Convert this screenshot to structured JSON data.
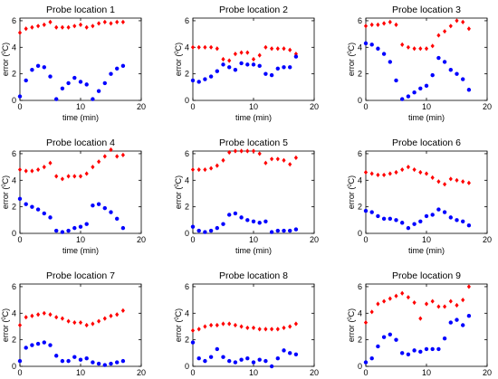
{
  "colors": {
    "series_red": "#ff0000",
    "series_blue": "#0000ff"
  },
  "chart_data": [
    {
      "type": "scatter",
      "title": "Probe location 1",
      "xlabel": "time (min)",
      "ylabel": "error (",
      "ylabel_unit": "0",
      "ylabel_unit_tail": "C)",
      "xlim": [
        0,
        20
      ],
      "ylim": [
        0,
        6.2
      ],
      "xticks": [
        0,
        10,
        20
      ],
      "yticks": [
        0,
        2,
        4,
        6
      ],
      "series": [
        {
          "color": "red",
          "marker": "diamond",
          "x": [
            0,
            1,
            2,
            3,
            4,
            5,
            6,
            7,
            8,
            9,
            10,
            11,
            12,
            13,
            14,
            15,
            16,
            17
          ],
          "y": [
            5.1,
            5.4,
            5.5,
            5.6,
            5.7,
            5.9,
            5.5,
            5.5,
            5.5,
            5.6,
            5.7,
            5.5,
            5.6,
            5.8,
            5.9,
            5.8,
            5.9,
            5.9
          ]
        },
        {
          "color": "blue",
          "marker": "circle",
          "x": [
            0,
            1,
            2,
            3,
            4,
            5,
            6,
            7,
            8,
            9,
            10,
            11,
            12,
            13,
            14,
            15,
            16,
            17
          ],
          "y": [
            0.3,
            1.5,
            2.3,
            2.6,
            2.5,
            1.8,
            0.1,
            0.9,
            1.3,
            1.7,
            1.4,
            1.2,
            0.1,
            0.7,
            1.3,
            2.0,
            2.4,
            2.6
          ]
        }
      ]
    },
    {
      "type": "scatter",
      "title": "Probe location 2",
      "xlabel": "time (min)",
      "ylabel": "error (",
      "ylabel_unit": "0",
      "ylabel_unit_tail": "C)",
      "xlim": [
        0,
        20
      ],
      "ylim": [
        0,
        6.2
      ],
      "xticks": [
        0,
        10,
        20
      ],
      "yticks": [
        0,
        2,
        4,
        6
      ],
      "series": [
        {
          "color": "red",
          "marker": "diamond",
          "x": [
            0,
            1,
            2,
            3,
            4,
            5,
            6,
            7,
            8,
            9,
            10,
            11,
            12,
            13,
            14,
            15,
            16,
            17
          ],
          "y": [
            4.0,
            4.0,
            4.0,
            4.0,
            3.9,
            3.1,
            3.0,
            3.5,
            3.6,
            3.6,
            3.1,
            3.4,
            4.0,
            3.9,
            3.9,
            3.9,
            3.8,
            3.5
          ]
        },
        {
          "color": "blue",
          "marker": "circle",
          "x": [
            0,
            1,
            2,
            3,
            4,
            5,
            6,
            7,
            8,
            9,
            10,
            11,
            12,
            13,
            14,
            15,
            16,
            17
          ],
          "y": [
            1.5,
            1.4,
            1.6,
            1.8,
            2.2,
            2.7,
            2.5,
            2.3,
            2.8,
            2.7,
            2.7,
            2.6,
            2.0,
            1.9,
            2.4,
            2.5,
            2.5,
            3.3
          ]
        }
      ]
    },
    {
      "type": "scatter",
      "title": "Probe location 3",
      "xlabel": "time (min)",
      "ylabel": "error (",
      "ylabel_unit": "0",
      "ylabel_unit_tail": "C)",
      "xlim": [
        0,
        20
      ],
      "ylim": [
        0,
        6.2
      ],
      "xticks": [
        0,
        10,
        20
      ],
      "yticks": [
        0,
        2,
        4,
        6
      ],
      "series": [
        {
          "color": "red",
          "marker": "diamond",
          "x": [
            0,
            1,
            2,
            3,
            4,
            5,
            6,
            7,
            8,
            9,
            10,
            11,
            12,
            13,
            14,
            15,
            16,
            17
          ],
          "y": [
            5.6,
            5.7,
            5.7,
            5.8,
            5.9,
            5.7,
            4.2,
            4.0,
            3.9,
            3.9,
            3.9,
            4.1,
            4.9,
            5.2,
            5.6,
            6.0,
            5.9,
            5.4
          ]
        },
        {
          "color": "blue",
          "marker": "circle",
          "x": [
            0,
            1,
            2,
            3,
            4,
            5,
            6,
            7,
            8,
            9,
            10,
            11,
            12,
            13,
            14,
            15,
            16,
            17
          ],
          "y": [
            4.3,
            4.2,
            3.9,
            3.5,
            2.9,
            1.5,
            0.1,
            0.3,
            0.6,
            0.9,
            1.1,
            1.9,
            3.2,
            2.9,
            2.3,
            2.0,
            1.6,
            0.8
          ]
        }
      ]
    },
    {
      "type": "scatter",
      "title": "Probe location 4",
      "xlabel": "time (min)",
      "ylabel": "error (",
      "ylabel_unit": "0",
      "ylabel_unit_tail": "C)",
      "xlim": [
        0,
        20
      ],
      "ylim": [
        0,
        6.2
      ],
      "xticks": [
        0,
        10,
        20
      ],
      "yticks": [
        0,
        2,
        4,
        6
      ],
      "series": [
        {
          "color": "red",
          "marker": "diamond",
          "x": [
            0,
            1,
            2,
            3,
            4,
            5,
            6,
            7,
            8,
            9,
            10,
            11,
            12,
            13,
            14,
            15,
            16,
            17
          ],
          "y": [
            4.8,
            4.7,
            4.7,
            4.8,
            5.0,
            5.3,
            4.3,
            4.1,
            4.3,
            4.3,
            4.3,
            4.5,
            5.0,
            5.4,
            5.8,
            6.3,
            5.8,
            5.9
          ]
        },
        {
          "color": "blue",
          "marker": "circle",
          "x": [
            0,
            1,
            2,
            3,
            4,
            5,
            6,
            7,
            8,
            9,
            10,
            11,
            12,
            13,
            14,
            15,
            16,
            17
          ],
          "y": [
            2.6,
            2.2,
            2.0,
            1.8,
            1.5,
            1.2,
            0.2,
            0.1,
            0.2,
            0.4,
            0.5,
            0.7,
            2.1,
            2.2,
            1.9,
            1.6,
            1.1,
            0.4
          ]
        }
      ]
    },
    {
      "type": "scatter",
      "title": "Probe location 5",
      "xlabel": "time (min)",
      "ylabel": "error (",
      "ylabel_unit": "0",
      "ylabel_unit_tail": "C)",
      "xlim": [
        0,
        20
      ],
      "ylim": [
        0,
        6.2
      ],
      "xticks": [
        0,
        10,
        20
      ],
      "yticks": [
        0,
        2,
        4,
        6
      ],
      "series": [
        {
          "color": "red",
          "marker": "diamond",
          "x": [
            0,
            1,
            2,
            3,
            4,
            5,
            6,
            7,
            8,
            9,
            10,
            11,
            12,
            13,
            14,
            15,
            16,
            17
          ],
          "y": [
            4.8,
            4.8,
            4.8,
            4.9,
            5.1,
            5.5,
            6.1,
            6.2,
            6.2,
            6.2,
            6.2,
            6.0,
            5.3,
            5.6,
            5.6,
            5.5,
            5.2,
            5.7
          ]
        },
        {
          "color": "blue",
          "marker": "circle",
          "x": [
            0,
            1,
            2,
            3,
            4,
            5,
            6,
            7,
            8,
            9,
            10,
            11,
            12,
            13,
            14,
            15,
            16,
            17
          ],
          "y": [
            0.5,
            0.2,
            0.1,
            0.2,
            0.4,
            0.7,
            1.4,
            1.5,
            1.2,
            1.0,
            0.9,
            0.8,
            0.9,
            0.1,
            0.2,
            0.2,
            0.2,
            0.3
          ]
        }
      ]
    },
    {
      "type": "scatter",
      "title": "Probe location 6",
      "xlabel": "time (min)",
      "ylabel": "error (",
      "ylabel_unit": "0",
      "ylabel_unit_tail": "C)",
      "xlim": [
        0,
        20
      ],
      "ylim": [
        0,
        6.2
      ],
      "xticks": [
        0,
        10,
        20
      ],
      "yticks": [
        0,
        2,
        4,
        6
      ],
      "series": [
        {
          "color": "red",
          "marker": "diamond",
          "x": [
            0,
            1,
            2,
            3,
            4,
            5,
            6,
            7,
            8,
            9,
            10,
            11,
            12,
            13,
            14,
            15,
            16,
            17
          ],
          "y": [
            4.6,
            4.5,
            4.4,
            4.4,
            4.5,
            4.6,
            4.8,
            5.0,
            4.8,
            4.6,
            4.5,
            4.2,
            3.9,
            3.7,
            4.1,
            4.0,
            3.9,
            3.8
          ]
        },
        {
          "color": "blue",
          "marker": "circle",
          "x": [
            0,
            1,
            2,
            3,
            4,
            5,
            6,
            7,
            8,
            9,
            10,
            11,
            12,
            13,
            14,
            15,
            16,
            17
          ],
          "y": [
            1.7,
            1.6,
            1.3,
            1.1,
            1.1,
            1.0,
            0.8,
            0.4,
            0.7,
            0.9,
            1.3,
            1.4,
            1.8,
            1.6,
            1.2,
            1.0,
            0.9,
            0.6
          ]
        }
      ]
    },
    {
      "type": "scatter",
      "title": "Probe location 7",
      "xlabel": "time (min)",
      "ylabel": "error (",
      "ylabel_unit": "0",
      "ylabel_unit_tail": "C)",
      "xlim": [
        0,
        20
      ],
      "ylim": [
        0,
        6.2
      ],
      "xticks": [
        0,
        10,
        20
      ],
      "yticks": [
        0,
        2,
        4,
        6
      ],
      "series": [
        {
          "color": "red",
          "marker": "diamond",
          "x": [
            0,
            1,
            2,
            3,
            4,
            5,
            6,
            7,
            8,
            9,
            10,
            11,
            12,
            13,
            14,
            15,
            16,
            17
          ],
          "y": [
            3.1,
            3.7,
            3.8,
            3.9,
            4.0,
            3.9,
            3.7,
            3.6,
            3.4,
            3.3,
            3.3,
            3.1,
            3.2,
            3.4,
            3.6,
            3.8,
            3.9,
            4.2
          ]
        },
        {
          "color": "blue",
          "marker": "circle",
          "x": [
            0,
            1,
            2,
            3,
            4,
            5,
            6,
            7,
            8,
            9,
            10,
            11,
            12,
            13,
            14,
            15,
            16,
            17
          ],
          "y": [
            0.4,
            1.4,
            1.6,
            1.7,
            1.8,
            1.6,
            0.8,
            0.4,
            0.4,
            0.7,
            0.5,
            0.6,
            0.3,
            0.2,
            0.1,
            0.2,
            0.3,
            0.4
          ]
        }
      ]
    },
    {
      "type": "scatter",
      "title": "Probe location 8",
      "xlabel": "time (min)",
      "ylabel": "error (",
      "ylabel_unit": "0",
      "ylabel_unit_tail": "C)",
      "xlim": [
        0,
        20
      ],
      "ylim": [
        0,
        6.2
      ],
      "xticks": [
        0,
        10,
        20
      ],
      "yticks": [
        0,
        2,
        4,
        6
      ],
      "series": [
        {
          "color": "red",
          "marker": "diamond",
          "x": [
            0,
            1,
            2,
            3,
            4,
            5,
            6,
            7,
            8,
            9,
            10,
            11,
            12,
            13,
            14,
            15,
            16,
            17
          ],
          "y": [
            2.7,
            2.8,
            3.0,
            3.1,
            3.1,
            3.2,
            3.2,
            3.1,
            3.0,
            2.9,
            2.9,
            2.8,
            2.8,
            2.8,
            2.8,
            2.9,
            3.0,
            3.2
          ]
        },
        {
          "color": "blue",
          "marker": "circle",
          "x": [
            0,
            1,
            2,
            3,
            4,
            5,
            6,
            7,
            8,
            9,
            10,
            11,
            12,
            13,
            14,
            15,
            16,
            17
          ],
          "y": [
            1.8,
            0.6,
            0.4,
            0.7,
            1.3,
            0.7,
            0.4,
            0.3,
            0.5,
            0.6,
            0.3,
            0.5,
            0.4,
            0.0,
            0.6,
            1.2,
            1.0,
            0.9
          ]
        }
      ]
    },
    {
      "type": "scatter",
      "title": "Probe location 9",
      "xlabel": "time (min)",
      "ylabel": "error (",
      "ylabel_unit": "0",
      "ylabel_unit_tail": "C)",
      "xlim": [
        0,
        20
      ],
      "ylim": [
        0,
        6.2
      ],
      "xticks": [
        0,
        10,
        20
      ],
      "yticks": [
        0,
        2,
        4,
        6
      ],
      "series": [
        {
          "color": "red",
          "marker": "diamond",
          "x": [
            0,
            1,
            2,
            3,
            4,
            5,
            6,
            7,
            8,
            9,
            10,
            11,
            12,
            13,
            14,
            15,
            16,
            17
          ],
          "y": [
            3.3,
            4.1,
            4.7,
            4.9,
            5.1,
            5.3,
            5.5,
            5.2,
            4.8,
            3.6,
            4.7,
            4.9,
            4.5,
            4.5,
            4.9,
            4.6,
            5.0,
            6.0
          ]
        },
        {
          "color": "blue",
          "marker": "circle",
          "x": [
            0,
            1,
            2,
            3,
            4,
            5,
            6,
            7,
            8,
            9,
            10,
            11,
            12,
            13,
            14,
            15,
            16,
            17
          ],
          "y": [
            0.3,
            0.6,
            1.5,
            2.2,
            2.4,
            2.0,
            1.0,
            0.9,
            1.2,
            1.1,
            1.3,
            1.3,
            1.3,
            2.1,
            3.3,
            3.5,
            3.1,
            3.8
          ]
        }
      ]
    }
  ]
}
